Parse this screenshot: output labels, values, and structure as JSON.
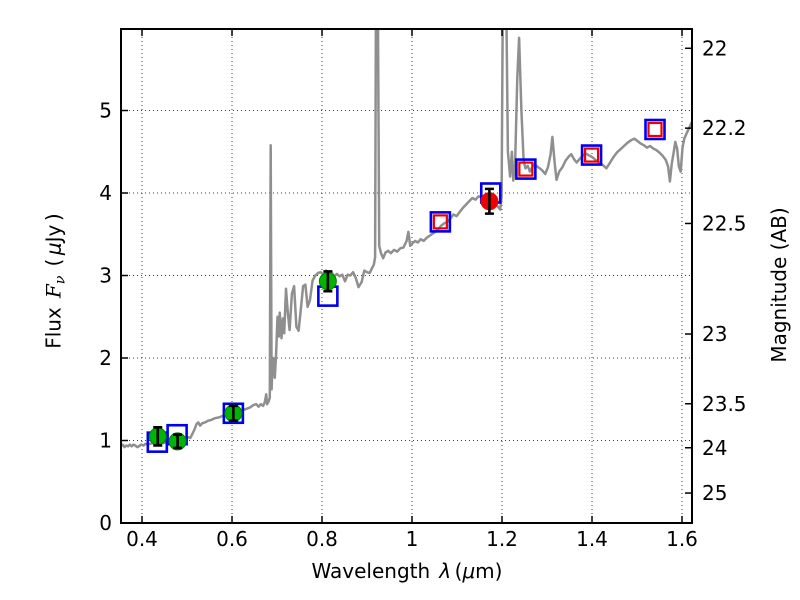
{
  "chart_data": {
    "type": "line",
    "title": "",
    "xlabel": "Wavelength λ (μm)",
    "ylabel_left": "Flux Fν ( μJy )",
    "ylabel_right": "Magnitude (AB)",
    "labels": {
      "x": {
        "word": "Wavelength",
        "sym": "λ",
        "unit_pre": "(",
        "mu": "μ",
        "unit_post": "m)"
      },
      "y_left": {
        "word": "Flux",
        "f": "F",
        "nu": "ν",
        "pre": "(",
        "mu": "μ",
        "unit": "Jy",
        "post": ")"
      },
      "y_right": "Magnitude (AB)"
    },
    "xlim": [
      0.3533,
      1.6222
    ],
    "ylim": [
      0,
      5.988
    ],
    "ab_zeropoint": 23.9,
    "grid": true,
    "legend": null,
    "x_ticks": [
      {
        "v": 0.4,
        "label": "0.4"
      },
      {
        "v": 0.6,
        "label": "0.6"
      },
      {
        "v": 0.8,
        "label": "0.8"
      },
      {
        "v": 1.0,
        "label": "1"
      },
      {
        "v": 1.2,
        "label": "1.2"
      },
      {
        "v": 1.4,
        "label": "1.4"
      },
      {
        "v": 1.6,
        "label": "1.6"
      }
    ],
    "y_ticks_left": [
      {
        "v": 0,
        "label": "0"
      },
      {
        "v": 1,
        "label": "1"
      },
      {
        "v": 2,
        "label": "2"
      },
      {
        "v": 3,
        "label": "3"
      },
      {
        "v": 4,
        "label": "4"
      },
      {
        "v": 5,
        "label": "5"
      }
    ],
    "y_ticks_right": [
      {
        "m": 22,
        "label": "22"
      },
      {
        "m": 22.2,
        "label": "22.2"
      },
      {
        "m": 22.5,
        "label": "22.5"
      },
      {
        "m": 23,
        "label": "23"
      },
      {
        "m": 23.5,
        "label": "23.5"
      },
      {
        "m": 24,
        "label": "24"
      },
      {
        "m": 25,
        "label": "25"
      }
    ],
    "colors": {
      "spectrum": "#8f8f8f",
      "grid": "#3c3c3c",
      "frame": "#000000",
      "green_fill": "#00b400",
      "green_edge": "#008000",
      "blue": "#0000ee",
      "red": "#ee0000",
      "errorbar": "#000000",
      "text": "#000000"
    },
    "series": {
      "green_points": [
        {
          "x": 0.435,
          "y": 1.05,
          "yerr": 0.11
        },
        {
          "x": 0.479,
          "y": 0.99,
          "yerr": 0.08
        },
        {
          "x": 0.603,
          "y": 1.33,
          "yerr": 0.09
        },
        {
          "x": 0.813,
          "y": 2.93,
          "yerr": 0.12
        }
      ],
      "red_point": {
        "x": 1.172,
        "y": 3.9,
        "yerr": 0.15
      },
      "blue_squares": [
        {
          "x": 0.434,
          "y": 0.98
        },
        {
          "x": 0.478,
          "y": 1.07
        },
        {
          "x": 0.603,
          "y": 1.33
        },
        {
          "x": 0.813,
          "y": 2.75
        },
        {
          "x": 1.063,
          "y": 3.65
        },
        {
          "x": 1.175,
          "y": 4.0
        },
        {
          "x": 1.253,
          "y": 4.29
        },
        {
          "x": 1.399,
          "y": 4.46
        },
        {
          "x": 1.54,
          "y": 4.77
        }
      ],
      "red_squares": [
        {
          "x": 1.063,
          "y": 3.65
        },
        {
          "x": 1.253,
          "y": 4.29
        },
        {
          "x": 1.399,
          "y": 4.46
        },
        {
          "x": 1.54,
          "y": 4.77
        }
      ]
    },
    "spectrum": [
      [
        0.353,
        0.93
      ],
      [
        0.357,
        0.95
      ],
      [
        0.361,
        0.92
      ],
      [
        0.365,
        0.94
      ],
      [
        0.369,
        0.93
      ],
      [
        0.373,
        0.95
      ],
      [
        0.377,
        0.93
      ],
      [
        0.381,
        0.95
      ],
      [
        0.385,
        0.94
      ],
      [
        0.389,
        0.92
      ],
      [
        0.393,
        0.93
      ],
      [
        0.398,
        0.95
      ],
      [
        0.403,
        0.94
      ],
      [
        0.408,
        0.96
      ],
      [
        0.413,
        0.95
      ],
      [
        0.418,
        0.96
      ],
      [
        0.424,
        0.97
      ],
      [
        0.43,
        0.96
      ],
      [
        0.436,
        0.97
      ],
      [
        0.442,
        0.98
      ],
      [
        0.448,
        0.97
      ],
      [
        0.454,
        0.98
      ],
      [
        0.46,
        0.99
      ],
      [
        0.466,
        0.98
      ],
      [
        0.472,
        0.99
      ],
      [
        0.478,
        1.0
      ],
      [
        0.484,
        1.0
      ],
      [
        0.489,
        1.02
      ],
      [
        0.493,
        0.99
      ],
      [
        0.497,
        1.02
      ],
      [
        0.502,
        1.04
      ],
      [
        0.507,
        1.03
      ],
      [
        0.512,
        1.08
      ],
      [
        0.517,
        1.14
      ],
      [
        0.521,
        1.2
      ],
      [
        0.525,
        1.22
      ],
      [
        0.529,
        1.18
      ],
      [
        0.534,
        1.21
      ],
      [
        0.54,
        1.22
      ],
      [
        0.547,
        1.24
      ],
      [
        0.554,
        1.25
      ],
      [
        0.562,
        1.27
      ],
      [
        0.571,
        1.28
      ],
      [
        0.58,
        1.3
      ],
      [
        0.59,
        1.31
      ],
      [
        0.6,
        1.33
      ],
      [
        0.61,
        1.34
      ],
      [
        0.62,
        1.36
      ],
      [
        0.63,
        1.38
      ],
      [
        0.64,
        1.4
      ],
      [
        0.648,
        1.43
      ],
      [
        0.654,
        1.44
      ],
      [
        0.659,
        1.41
      ],
      [
        0.664,
        1.44
      ],
      [
        0.669,
        1.42
      ],
      [
        0.673,
        1.47
      ],
      [
        0.676,
        1.56
      ],
      [
        0.678,
        1.44
      ],
      [
        0.681,
        1.47
      ],
      [
        0.684,
        1.52
      ],
      [
        0.686,
        4.58
      ],
      [
        0.688,
        1.62
      ],
      [
        0.69,
        1.9
      ],
      [
        0.692,
        2.0
      ],
      [
        0.695,
        1.76
      ],
      [
        0.698,
        2.05
      ],
      [
        0.701,
        2.5
      ],
      [
        0.704,
        2.26
      ],
      [
        0.706,
        2.55
      ],
      [
        0.71,
        2.24
      ],
      [
        0.713,
        2.48
      ],
      [
        0.716,
        2.3
      ],
      [
        0.72,
        2.84
      ],
      [
        0.724,
        2.55
      ],
      [
        0.728,
        2.34
      ],
      [
        0.733,
        2.78
      ],
      [
        0.738,
        2.87
      ],
      [
        0.743,
        2.38
      ],
      [
        0.748,
        2.33
      ],
      [
        0.753,
        2.6
      ],
      [
        0.758,
        2.87
      ],
      [
        0.763,
        2.89
      ],
      [
        0.768,
        2.62
      ],
      [
        0.773,
        2.7
      ],
      [
        0.779,
        2.94
      ],
      [
        0.785,
        3.0
      ],
      [
        0.791,
        3.03
      ],
      [
        0.797,
        3.04
      ],
      [
        0.803,
        3.01
      ],
      [
        0.809,
        3.06
      ],
      [
        0.815,
        3.01
      ],
      [
        0.821,
        3.04
      ],
      [
        0.827,
        2.99
      ],
      [
        0.833,
        3.02
      ],
      [
        0.839,
        2.99
      ],
      [
        0.845,
        3.01
      ],
      [
        0.851,
        2.93
      ],
      [
        0.857,
        3.01
      ],
      [
        0.863,
        3.0
      ],
      [
        0.869,
        3.04
      ],
      [
        0.875,
        2.97
      ],
      [
        0.881,
        2.86
      ],
      [
        0.888,
        2.92
      ],
      [
        0.894,
        3.06
      ],
      [
        0.9,
        3.04
      ],
      [
        0.906,
        3.03
      ],
      [
        0.911,
        3.09
      ],
      [
        0.915,
        3.13
      ],
      [
        0.918,
        3.22
      ],
      [
        0.92,
        6.5
      ],
      [
        0.924,
        6.5
      ],
      [
        0.927,
        3.36
      ],
      [
        0.931,
        3.27
      ],
      [
        0.936,
        3.21
      ],
      [
        0.941,
        3.28
      ],
      [
        0.947,
        3.3
      ],
      [
        0.953,
        3.27
      ],
      [
        0.96,
        3.31
      ],
      [
        0.967,
        3.29
      ],
      [
        0.974,
        3.33
      ],
      [
        0.981,
        3.34
      ],
      [
        0.988,
        3.42
      ],
      [
        0.992,
        3.53
      ],
      [
        0.996,
        3.36
      ],
      [
        1.001,
        3.39
      ],
      [
        1.007,
        3.42
      ],
      [
        1.013,
        3.4
      ],
      [
        1.019,
        3.44
      ],
      [
        1.026,
        3.42
      ],
      [
        1.033,
        3.46
      ],
      [
        1.041,
        3.49
      ],
      [
        1.049,
        3.52
      ],
      [
        1.057,
        3.55
      ],
      [
        1.064,
        3.6
      ],
      [
        1.071,
        3.63
      ],
      [
        1.078,
        3.65
      ],
      [
        1.085,
        3.69
      ],
      [
        1.092,
        3.74
      ],
      [
        1.099,
        3.72
      ],
      [
        1.106,
        3.77
      ],
      [
        1.113,
        3.82
      ],
      [
        1.12,
        3.86
      ],
      [
        1.127,
        3.9
      ],
      [
        1.134,
        3.94
      ],
      [
        1.141,
        3.92
      ],
      [
        1.148,
        3.96
      ],
      [
        1.155,
        3.95
      ],
      [
        1.162,
        3.93
      ],
      [
        1.169,
        3.91
      ],
      [
        1.176,
        3.89
      ],
      [
        1.183,
        3.87
      ],
      [
        1.19,
        3.84
      ],
      [
        1.196,
        3.8
      ],
      [
        1.199,
        3.95
      ],
      [
        1.202,
        6.5
      ],
      [
        1.209,
        6.5
      ],
      [
        1.213,
        4.5
      ],
      [
        1.218,
        4.2
      ],
      [
        1.222,
        4.5
      ],
      [
        1.225,
        4.15
      ],
      [
        1.229,
        4.35
      ],
      [
        1.234,
        5.4
      ],
      [
        1.238,
        5.88
      ],
      [
        1.243,
        5.0
      ],
      [
        1.248,
        4.4
      ],
      [
        1.252,
        4.3
      ],
      [
        1.257,
        4.33
      ],
      [
        1.262,
        4.26
      ],
      [
        1.267,
        4.31
      ],
      [
        1.272,
        4.35
      ],
      [
        1.278,
        4.32
      ],
      [
        1.284,
        4.3
      ],
      [
        1.29,
        4.27
      ],
      [
        1.296,
        4.23
      ],
      [
        1.302,
        4.31
      ],
      [
        1.308,
        4.47
      ],
      [
        1.312,
        4.68
      ],
      [
        1.317,
        4.36
      ],
      [
        1.321,
        4.16
      ],
      [
        1.327,
        4.26
      ],
      [
        1.334,
        4.31
      ],
      [
        1.341,
        4.39
      ],
      [
        1.348,
        4.44
      ],
      [
        1.354,
        4.47
      ],
      [
        1.36,
        4.41
      ],
      [
        1.366,
        4.37
      ],
      [
        1.372,
        4.41
      ],
      [
        1.379,
        4.45
      ],
      [
        1.386,
        4.48
      ],
      [
        1.392,
        4.46
      ],
      [
        1.399,
        4.44
      ],
      [
        1.406,
        4.41
      ],
      [
        1.413,
        4.38
      ],
      [
        1.419,
        4.36
      ],
      [
        1.426,
        4.33
      ],
      [
        1.432,
        4.3
      ],
      [
        1.439,
        4.36
      ],
      [
        1.447,
        4.43
      ],
      [
        1.455,
        4.49
      ],
      [
        1.463,
        4.53
      ],
      [
        1.471,
        4.57
      ],
      [
        1.479,
        4.61
      ],
      [
        1.487,
        4.64
      ],
      [
        1.494,
        4.66
      ],
      [
        1.501,
        4.63
      ],
      [
        1.508,
        4.6
      ],
      [
        1.515,
        4.58
      ],
      [
        1.522,
        4.55
      ],
      [
        1.529,
        4.57
      ],
      [
        1.536,
        4.54
      ],
      [
        1.543,
        4.52
      ],
      [
        1.55,
        4.49
      ],
      [
        1.557,
        4.45
      ],
      [
        1.564,
        4.4
      ],
      [
        1.569,
        4.32
      ],
      [
        1.573,
        4.14
      ],
      [
        1.577,
        4.35
      ],
      [
        1.581,
        4.48
      ],
      [
        1.585,
        4.62
      ],
      [
        1.589,
        4.54
      ],
      [
        1.593,
        4.32
      ],
      [
        1.597,
        4.26
      ],
      [
        1.601,
        4.55
      ],
      [
        1.605,
        4.66
      ],
      [
        1.61,
        4.72
      ],
      [
        1.615,
        4.78
      ],
      [
        1.622,
        4.86
      ]
    ]
  }
}
